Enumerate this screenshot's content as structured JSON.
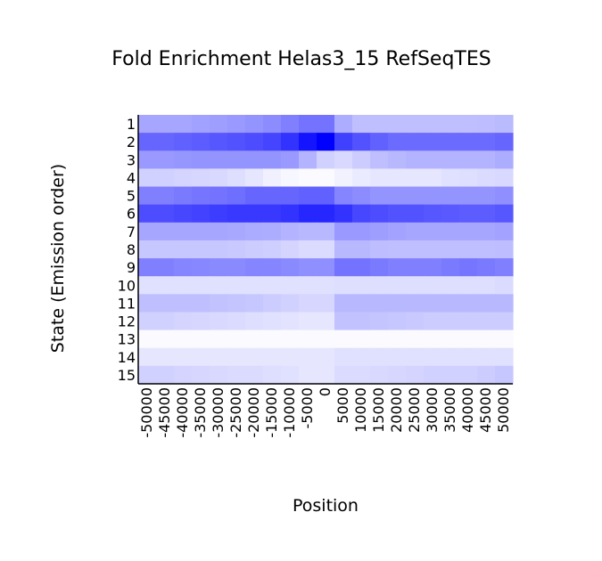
{
  "chart_data": {
    "type": "heatmap",
    "title": "Fold Enrichment Helas3_15 RefSeqTES",
    "xlabel": "Position",
    "ylabel": "State (Emission order)",
    "x_tick_labels": [
      "-50000",
      "-45000",
      "-40000",
      "-35000",
      "-30000",
      "-25000",
      "-20000",
      "-15000",
      "-10000",
      "-5000",
      "0",
      "5000",
      "10000",
      "15000",
      "20000",
      "25000",
      "30000",
      "35000",
      "40000",
      "45000",
      "50000"
    ],
    "y_tick_labels": [
      "1",
      "2",
      "3",
      "4",
      "5",
      "6",
      "7",
      "8",
      "9",
      "10",
      "11",
      "12",
      "13",
      "14",
      "15"
    ],
    "colormap": {
      "low": "#ffffff",
      "high": "#0000ff"
    },
    "values": [
      [
        0.35,
        0.35,
        0.35,
        0.37,
        0.38,
        0.4,
        0.42,
        0.45,
        0.5,
        0.55,
        0.55,
        0.32,
        0.25,
        0.25,
        0.25,
        0.25,
        0.25,
        0.25,
        0.25,
        0.26,
        0.27
      ],
      [
        0.6,
        0.6,
        0.62,
        0.64,
        0.66,
        0.68,
        0.7,
        0.73,
        0.8,
        0.92,
        1.0,
        0.75,
        0.68,
        0.62,
        0.58,
        0.58,
        0.58,
        0.58,
        0.58,
        0.58,
        0.6
      ],
      [
        0.4,
        0.4,
        0.41,
        0.42,
        0.42,
        0.42,
        0.42,
        0.42,
        0.4,
        0.3,
        0.18,
        0.15,
        0.2,
        0.25,
        0.28,
        0.3,
        0.3,
        0.3,
        0.3,
        0.3,
        0.32
      ],
      [
        0.18,
        0.18,
        0.17,
        0.16,
        0.15,
        0.13,
        0.1,
        0.06,
        0.03,
        0.02,
        0.02,
        0.05,
        0.08,
        0.1,
        0.1,
        0.1,
        0.1,
        0.12,
        0.13,
        0.14,
        0.15
      ],
      [
        0.5,
        0.5,
        0.52,
        0.54,
        0.55,
        0.57,
        0.6,
        0.6,
        0.6,
        0.62,
        0.62,
        0.48,
        0.45,
        0.42,
        0.42,
        0.42,
        0.42,
        0.42,
        0.42,
        0.42,
        0.44
      ],
      [
        0.7,
        0.7,
        0.72,
        0.74,
        0.76,
        0.78,
        0.78,
        0.78,
        0.8,
        0.85,
        0.85,
        0.8,
        0.72,
        0.7,
        0.68,
        0.68,
        0.66,
        0.65,
        0.64,
        0.64,
        0.66
      ],
      [
        0.35,
        0.35,
        0.35,
        0.35,
        0.35,
        0.34,
        0.33,
        0.32,
        0.3,
        0.28,
        0.28,
        0.4,
        0.4,
        0.38,
        0.36,
        0.35,
        0.35,
        0.35,
        0.35,
        0.35,
        0.36
      ],
      [
        0.22,
        0.22,
        0.22,
        0.22,
        0.22,
        0.21,
        0.2,
        0.19,
        0.17,
        0.14,
        0.14,
        0.28,
        0.28,
        0.26,
        0.25,
        0.25,
        0.25,
        0.25,
        0.25,
        0.25,
        0.26
      ],
      [
        0.5,
        0.5,
        0.48,
        0.47,
        0.46,
        0.46,
        0.48,
        0.48,
        0.46,
        0.44,
        0.44,
        0.55,
        0.55,
        0.52,
        0.5,
        0.5,
        0.5,
        0.52,
        0.54,
        0.52,
        0.5
      ],
      [
        0.12,
        0.12,
        0.12,
        0.12,
        0.12,
        0.12,
        0.12,
        0.12,
        0.12,
        0.12,
        0.12,
        0.13,
        0.13,
        0.13,
        0.13,
        0.13,
        0.13,
        0.13,
        0.13,
        0.13,
        0.14
      ],
      [
        0.25,
        0.25,
        0.25,
        0.25,
        0.24,
        0.23,
        0.22,
        0.2,
        0.18,
        0.16,
        0.16,
        0.28,
        0.28,
        0.28,
        0.28,
        0.28,
        0.28,
        0.28,
        0.28,
        0.28,
        0.28
      ],
      [
        0.18,
        0.18,
        0.17,
        0.16,
        0.15,
        0.14,
        0.13,
        0.12,
        0.11,
        0.1,
        0.1,
        0.24,
        0.24,
        0.23,
        0.22,
        0.21,
        0.2,
        0.2,
        0.2,
        0.2,
        0.2
      ],
      [
        0.02,
        0.02,
        0.02,
        0.02,
        0.02,
        0.02,
        0.02,
        0.02,
        0.02,
        0.02,
        0.02,
        0.02,
        0.02,
        0.02,
        0.02,
        0.02,
        0.02,
        0.02,
        0.02,
        0.02,
        0.02
      ],
      [
        0.1,
        0.1,
        0.1,
        0.1,
        0.1,
        0.1,
        0.1,
        0.1,
        0.1,
        0.1,
        0.1,
        0.12,
        0.12,
        0.12,
        0.12,
        0.12,
        0.12,
        0.12,
        0.12,
        0.12,
        0.12
      ],
      [
        0.18,
        0.18,
        0.17,
        0.16,
        0.15,
        0.14,
        0.14,
        0.13,
        0.12,
        0.1,
        0.1,
        0.14,
        0.14,
        0.15,
        0.16,
        0.17,
        0.18,
        0.18,
        0.18,
        0.2,
        0.22
      ]
    ]
  }
}
